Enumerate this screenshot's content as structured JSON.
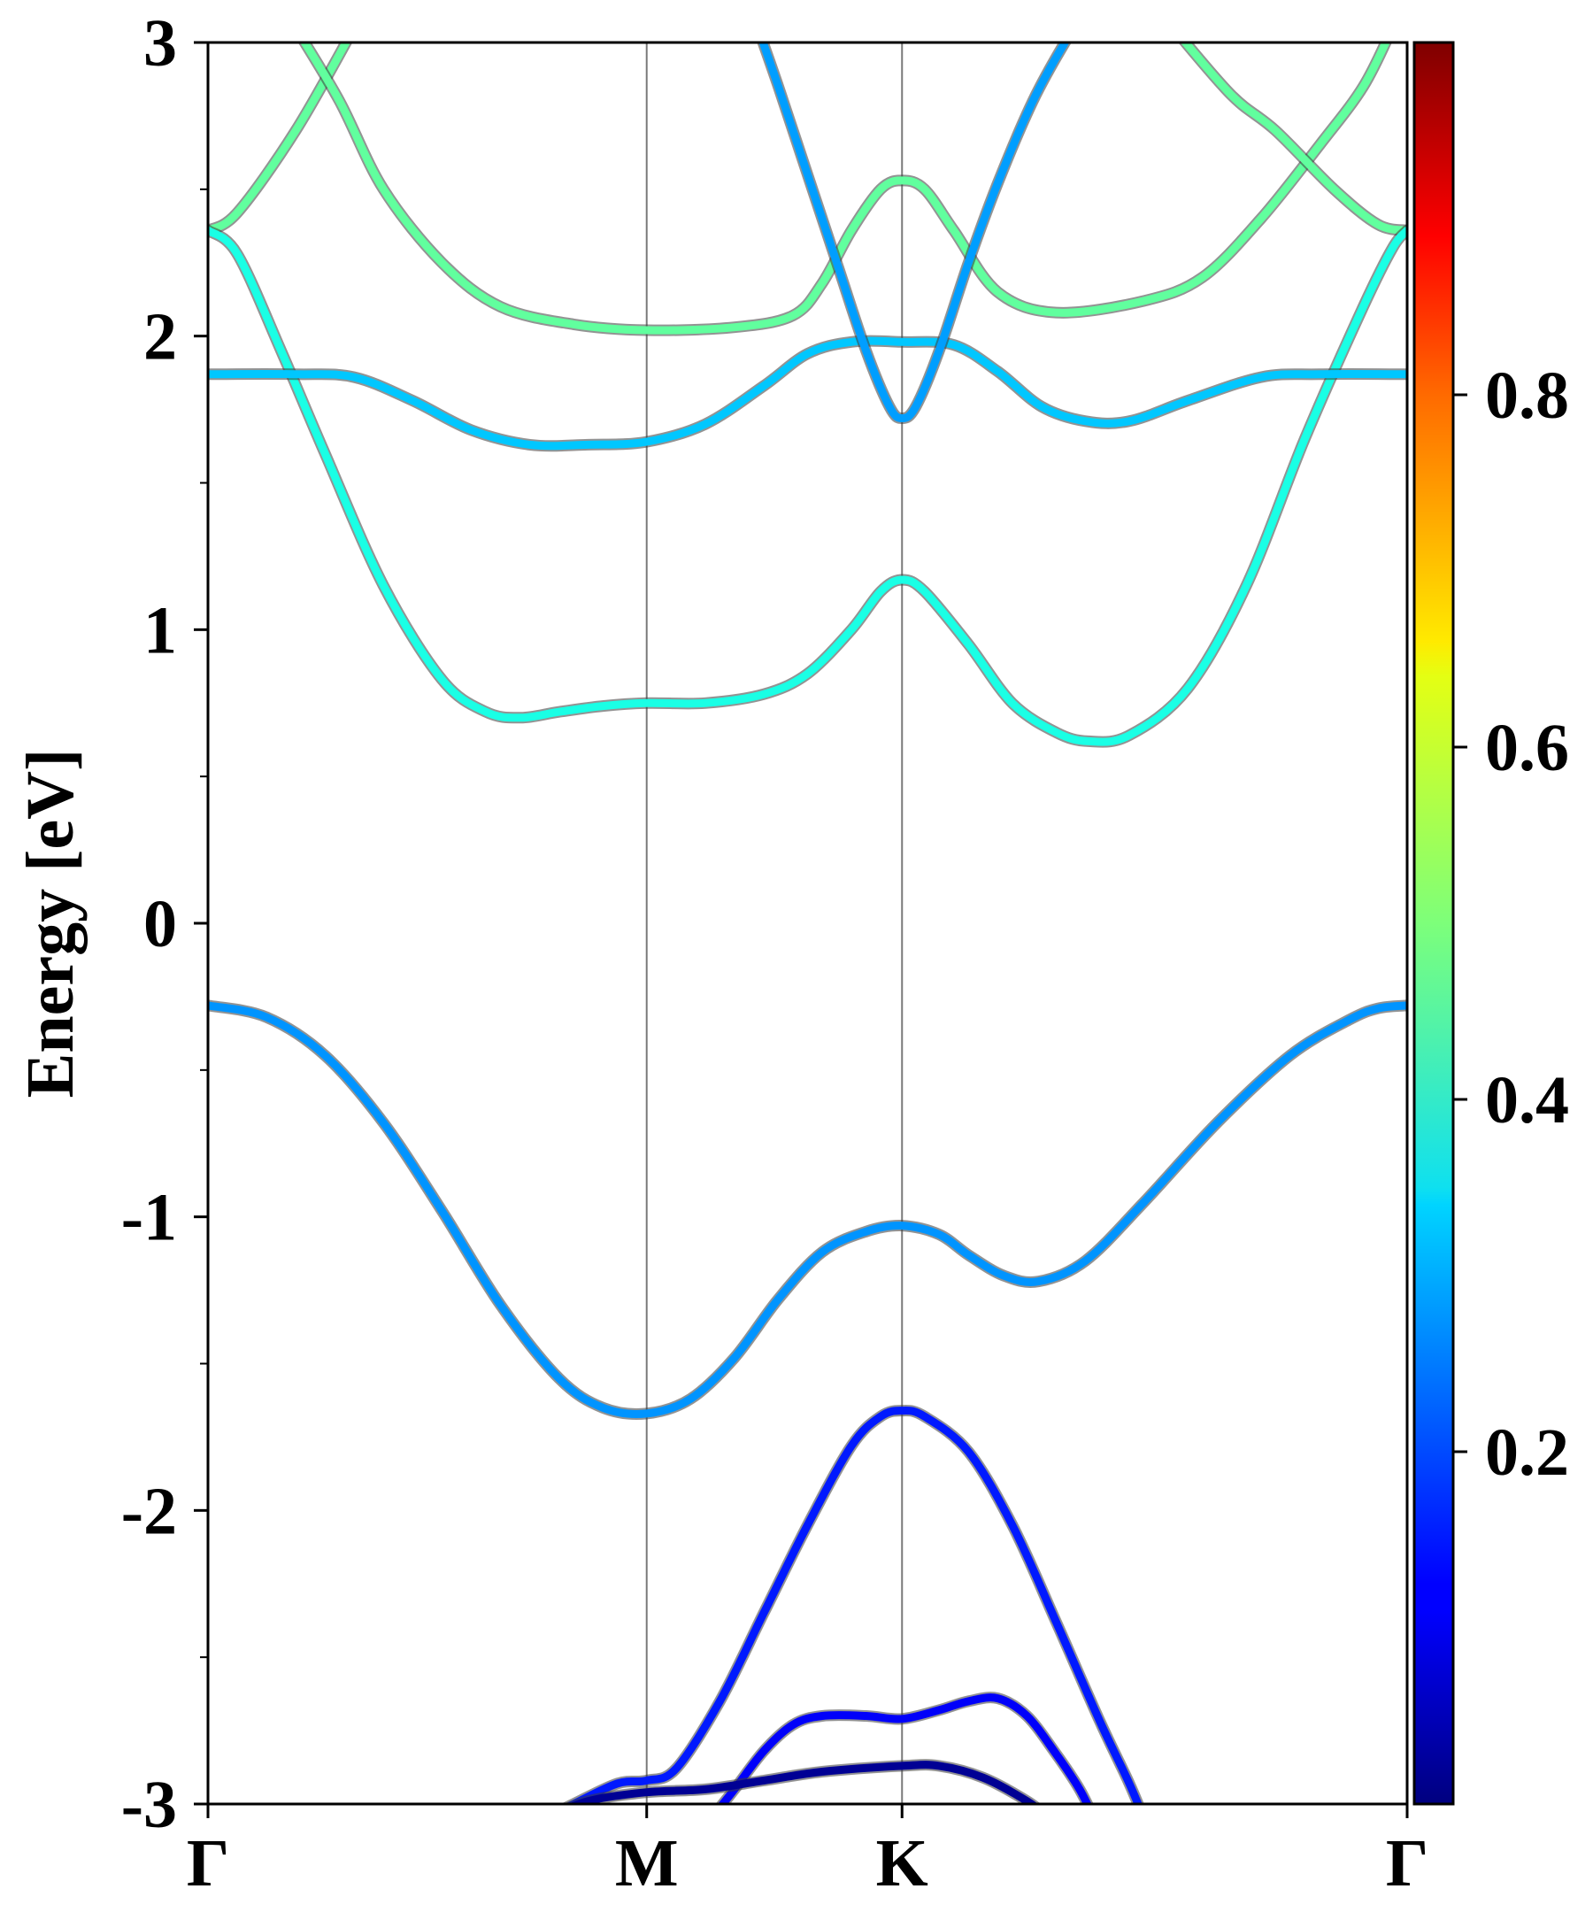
{
  "chart_data": {
    "type": "line",
    "title": "",
    "xlabel": "",
    "ylabel": "Energy [eV]",
    "ylim": [
      -3,
      3
    ],
    "xlim": [
      0,
      4.1
    ],
    "yticks": [
      "3",
      "2",
      "1",
      "0",
      "-1",
      "-2",
      "-3"
    ],
    "ytick_values": [
      3,
      2,
      1,
      0,
      -1,
      -2,
      -3
    ],
    "kpath": [
      {
        "label": "Γ",
        "x": 0.0
      },
      {
        "label": "M",
        "x": 1.5
      },
      {
        "label": "K",
        "x": 2.373
      },
      {
        "label": "Γ",
        "x": 4.1
      }
    ],
    "colorbar": {
      "colormap": "jet",
      "range": [
        0,
        1
      ],
      "tick_labels": [
        "0.2",
        "0.4",
        "0.6",
        "0.8"
      ],
      "tick_values": [
        0.2,
        0.4,
        0.6,
        0.8
      ]
    },
    "series": [
      {
        "color_value": 0.47,
        "points": [
          [
            0.0,
            2.36
          ],
          [
            0.1,
            2.42
          ],
          [
            0.3,
            2.7
          ],
          [
            0.5,
            3.05
          ]
        ]
      },
      {
        "color_value": 0.47,
        "points": [
          [
            0.3,
            3.05
          ],
          [
            0.45,
            2.8
          ],
          [
            0.6,
            2.5
          ],
          [
            0.8,
            2.25
          ],
          [
            1.0,
            2.1
          ],
          [
            1.25,
            2.04
          ],
          [
            1.5,
            2.02
          ],
          [
            1.8,
            2.03
          ],
          [
            2.0,
            2.07
          ],
          [
            2.1,
            2.18
          ],
          [
            2.2,
            2.36
          ],
          [
            2.3,
            2.5
          ],
          [
            2.373,
            2.53
          ],
          [
            2.45,
            2.5
          ],
          [
            2.55,
            2.36
          ],
          [
            2.7,
            2.15
          ],
          [
            2.9,
            2.08
          ],
          [
            3.2,
            2.12
          ],
          [
            3.4,
            2.2
          ],
          [
            3.6,
            2.4
          ],
          [
            3.8,
            2.65
          ],
          [
            3.95,
            2.85
          ],
          [
            4.05,
            3.05
          ]
        ]
      },
      {
        "color_value": 0.47,
        "points": [
          [
            3.3,
            3.05
          ],
          [
            3.5,
            2.82
          ],
          [
            3.65,
            2.7
          ],
          [
            3.85,
            2.5
          ],
          [
            4.0,
            2.38
          ],
          [
            4.1,
            2.36
          ]
        ]
      },
      {
        "color_value": 0.4,
        "points": [
          [
            0.0,
            2.36
          ],
          [
            0.1,
            2.28
          ],
          [
            0.25,
            1.95
          ],
          [
            0.4,
            1.6
          ],
          [
            0.6,
            1.15
          ],
          [
            0.8,
            0.83
          ],
          [
            0.95,
            0.72
          ],
          [
            1.07,
            0.7
          ],
          [
            1.2,
            0.72
          ],
          [
            1.35,
            0.74
          ],
          [
            1.5,
            0.75
          ],
          [
            1.7,
            0.75
          ],
          [
            1.9,
            0.78
          ],
          [
            2.05,
            0.85
          ],
          [
            2.2,
            1.0
          ],
          [
            2.3,
            1.13
          ],
          [
            2.373,
            1.17
          ],
          [
            2.45,
            1.13
          ],
          [
            2.6,
            0.95
          ],
          [
            2.75,
            0.75
          ],
          [
            2.9,
            0.65
          ],
          [
            3.01,
            0.62
          ],
          [
            3.15,
            0.64
          ],
          [
            3.35,
            0.8
          ],
          [
            3.55,
            1.15
          ],
          [
            3.75,
            1.65
          ],
          [
            3.95,
            2.1
          ],
          [
            4.05,
            2.3
          ],
          [
            4.1,
            2.36
          ]
        ]
      },
      {
        "color_value": 0.32,
        "points": [
          [
            0.0,
            1.87
          ],
          [
            0.3,
            1.87
          ],
          [
            0.5,
            1.86
          ],
          [
            0.7,
            1.78
          ],
          [
            0.9,
            1.68
          ],
          [
            1.1,
            1.63
          ],
          [
            1.3,
            1.63
          ],
          [
            1.5,
            1.64
          ],
          [
            1.7,
            1.7
          ],
          [
            1.9,
            1.83
          ],
          [
            2.05,
            1.94
          ],
          [
            2.2,
            1.98
          ],
          [
            2.373,
            1.98
          ],
          [
            2.55,
            1.97
          ],
          [
            2.7,
            1.88
          ],
          [
            2.85,
            1.76
          ],
          [
            3.0,
            1.71
          ],
          [
            3.15,
            1.71
          ],
          [
            3.35,
            1.78
          ],
          [
            3.6,
            1.86
          ],
          [
            3.8,
            1.87
          ],
          [
            4.1,
            1.87
          ]
        ]
      },
      {
        "color_value": 0.28,
        "points": [
          [
            1.88,
            3.05
          ],
          [
            1.95,
            2.85
          ],
          [
            2.05,
            2.55
          ],
          [
            2.15,
            2.25
          ],
          [
            2.25,
            1.95
          ],
          [
            2.33,
            1.76
          ],
          [
            2.373,
            1.72
          ],
          [
            2.42,
            1.76
          ],
          [
            2.5,
            1.95
          ],
          [
            2.6,
            2.25
          ],
          [
            2.7,
            2.52
          ],
          [
            2.82,
            2.8
          ],
          [
            2.93,
            3.0
          ],
          [
            2.97,
            3.05
          ]
        ]
      },
      {
        "color_value": 0.27,
        "points": [
          [
            0.0,
            -0.28
          ],
          [
            0.2,
            -0.32
          ],
          [
            0.4,
            -0.45
          ],
          [
            0.6,
            -0.68
          ],
          [
            0.8,
            -0.98
          ],
          [
            1.0,
            -1.3
          ],
          [
            1.2,
            -1.55
          ],
          [
            1.35,
            -1.65
          ],
          [
            1.5,
            -1.67
          ],
          [
            1.65,
            -1.62
          ],
          [
            1.8,
            -1.48
          ],
          [
            1.95,
            -1.28
          ],
          [
            2.1,
            -1.12
          ],
          [
            2.25,
            -1.05
          ],
          [
            2.373,
            -1.03
          ],
          [
            2.5,
            -1.06
          ],
          [
            2.6,
            -1.13
          ],
          [
            2.72,
            -1.2
          ],
          [
            2.84,
            -1.22
          ],
          [
            3.0,
            -1.15
          ],
          [
            3.2,
            -0.95
          ],
          [
            3.45,
            -0.68
          ],
          [
            3.7,
            -0.45
          ],
          [
            3.9,
            -0.33
          ],
          [
            4.0,
            -0.29
          ],
          [
            4.1,
            -0.28
          ]
        ]
      },
      {
        "color_value": 0.15,
        "points": [
          [
            1.15,
            -3.05
          ],
          [
            1.25,
            -3.0
          ],
          [
            1.4,
            -2.93
          ],
          [
            1.5,
            -2.92
          ],
          [
            1.6,
            -2.88
          ],
          [
            1.75,
            -2.65
          ],
          [
            1.9,
            -2.35
          ],
          [
            2.05,
            -2.05
          ],
          [
            2.2,
            -1.78
          ],
          [
            2.3,
            -1.68
          ],
          [
            2.373,
            -1.66
          ],
          [
            2.45,
            -1.68
          ],
          [
            2.6,
            -1.8
          ],
          [
            2.75,
            -2.05
          ],
          [
            2.9,
            -2.38
          ],
          [
            3.05,
            -2.72
          ],
          [
            3.15,
            -2.93
          ],
          [
            3.2,
            -3.05
          ]
        ]
      },
      {
        "color_value": 0.12,
        "points": [
          [
            1.72,
            -3.05
          ],
          [
            1.8,
            -2.95
          ],
          [
            1.9,
            -2.82
          ],
          [
            2.0,
            -2.73
          ],
          [
            2.1,
            -2.7
          ],
          [
            2.25,
            -2.7
          ],
          [
            2.373,
            -2.71
          ],
          [
            2.5,
            -2.68
          ],
          [
            2.6,
            -2.65
          ],
          [
            2.7,
            -2.64
          ],
          [
            2.8,
            -2.7
          ],
          [
            2.9,
            -2.83
          ],
          [
            2.98,
            -2.95
          ],
          [
            3.03,
            -3.05
          ]
        ]
      },
      {
        "color_value": 0.02,
        "points": [
          [
            1.15,
            -3.05
          ],
          [
            1.3,
            -2.99
          ],
          [
            1.5,
            -2.96
          ],
          [
            1.7,
            -2.95
          ],
          [
            1.9,
            -2.92
          ],
          [
            2.1,
            -2.89
          ],
          [
            2.373,
            -2.87
          ],
          [
            2.5,
            -2.87
          ],
          [
            2.65,
            -2.91
          ],
          [
            2.8,
            -2.99
          ],
          [
            2.88,
            -3.05
          ]
        ]
      }
    ]
  }
}
